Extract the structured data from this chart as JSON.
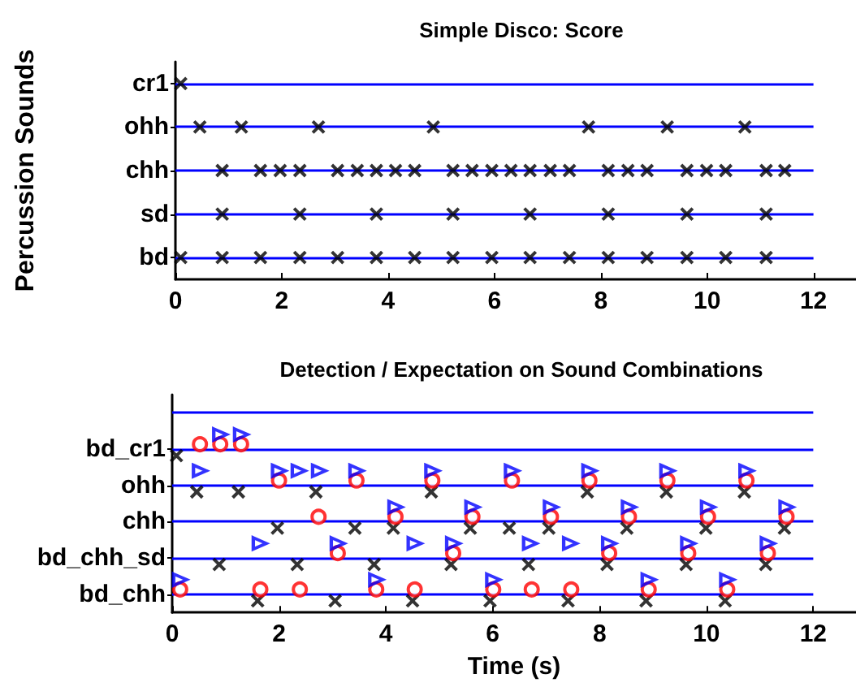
{
  "chart_data": [
    {
      "type": "scatter",
      "orientation": "horizontal",
      "title": "Simple Disco: Score",
      "ylabel": "Percussion Sounds",
      "marker": "cross",
      "grid": "y",
      "xlim": [
        0,
        12.8
      ],
      "xticks": [
        0,
        2,
        4,
        6,
        8,
        10,
        12
      ],
      "categories": [
        "cr1",
        "ohh",
        "chh",
        "sd",
        "bd"
      ],
      "series": [
        {
          "color": "#000000",
          "values": [
            0.1,
            0.46,
            0.88,
            0.88,
            0.1
          ]
        },
        {
          "color": "#000000",
          "values": [
            null,
            1.24,
            1.6,
            2.34,
            0.88
          ]
        },
        {
          "color": "#000000",
          "values": [
            null,
            2.69,
            1.97,
            3.78,
            1.6
          ]
        },
        {
          "color": "#000000",
          "values": [
            null,
            4.85,
            2.34,
            5.22,
            2.34
          ]
        },
        {
          "color": "#000000",
          "values": [
            null,
            7.77,
            3.05,
            6.67,
            3.05
          ]
        },
        {
          "color": "#000000",
          "values": [
            null,
            9.25,
            3.42,
            8.14,
            3.78
          ]
        },
        {
          "color": "#000000",
          "values": [
            null,
            10.71,
            3.78,
            9.62,
            4.5
          ]
        },
        {
          "color": "#000000",
          "values": [
            null,
            null,
            4.14,
            11.11,
            5.22
          ]
        },
        {
          "color": "#000000",
          "values": [
            null,
            null,
            4.5,
            null,
            5.95
          ]
        },
        {
          "color": "#000000",
          "values": [
            null,
            null,
            5.22,
            null,
            6.67
          ]
        },
        {
          "color": "#000000",
          "values": [
            null,
            null,
            5.58,
            null,
            7.41
          ]
        },
        {
          "color": "#000000",
          "values": [
            null,
            null,
            5.95,
            null,
            8.14
          ]
        },
        {
          "color": "#000000",
          "values": [
            null,
            null,
            6.31,
            null,
            8.87
          ]
        },
        {
          "color": "#000000",
          "values": [
            null,
            null,
            6.67,
            null,
            9.62
          ]
        },
        {
          "color": "#000000",
          "values": [
            null,
            null,
            7.05,
            null,
            10.35
          ]
        },
        {
          "color": "#000000",
          "values": [
            null,
            null,
            7.41,
            null,
            11.11
          ]
        },
        {
          "color": "#000000",
          "values": [
            null,
            null,
            8.14,
            null,
            null
          ]
        },
        {
          "color": "#000000",
          "values": [
            null,
            null,
            8.51,
            null,
            null
          ]
        },
        {
          "color": "#000000",
          "values": [
            null,
            null,
            8.87,
            null,
            null
          ]
        },
        {
          "color": "#000000",
          "values": [
            null,
            null,
            9.62,
            null,
            null
          ]
        },
        {
          "color": "#000000",
          "values": [
            null,
            null,
            9.99,
            null,
            null
          ]
        },
        {
          "color": "#000000",
          "values": [
            null,
            null,
            10.35,
            null,
            null
          ]
        },
        {
          "color": "#000000",
          "values": [
            null,
            null,
            11.11,
            null,
            null
          ]
        },
        {
          "color": "#000000",
          "values": [
            null,
            null,
            11.46,
            null,
            null
          ]
        }
      ]
    },
    {
      "type": "scatter",
      "orientation": "horizontal",
      "title": "Detection / Expectation on Sound Combinations",
      "xlabel": "Time (s)",
      "grid": "y",
      "xlim": [
        0,
        12.8
      ],
      "xticks": [
        0,
        2,
        4,
        6,
        8,
        10,
        12
      ],
      "categories": [
        null,
        "bd_cr1",
        "ohh",
        "chh",
        "bd_chh_sd",
        "bd_chh"
      ],
      "series": [
        {
          "color": "#000000",
          "marker": "cross",
          "values": [
            null,
            0.08,
            0.46,
            1.97,
            0.88,
            1.6
          ]
        },
        {
          "color": "#000000",
          "marker": "cross",
          "values": [
            null,
            null,
            1.24,
            3.42,
            2.34,
            3.05
          ]
        },
        {
          "color": "#000000",
          "marker": "cross",
          "values": [
            null,
            null,
            2.69,
            4.14,
            3.78,
            4.5
          ]
        },
        {
          "color": "#000000",
          "marker": "cross",
          "values": [
            null,
            null,
            4.85,
            5.58,
            5.22,
            5.95
          ]
        },
        {
          "color": "#000000",
          "marker": "cross",
          "values": [
            null,
            null,
            7.77,
            6.31,
            6.67,
            7.41
          ]
        },
        {
          "color": "#000000",
          "marker": "cross",
          "values": [
            null,
            null,
            9.25,
            7.05,
            8.14,
            8.87
          ]
        },
        {
          "color": "#000000",
          "marker": "cross",
          "values": [
            null,
            null,
            10.71,
            8.51,
            9.62,
            10.35
          ]
        },
        {
          "color": "#000000",
          "marker": "cross",
          "values": [
            null,
            null,
            null,
            9.99,
            11.11,
            null
          ]
        },
        {
          "color": "#000000",
          "marker": "cross",
          "values": [
            null,
            null,
            null,
            11.46,
            null,
            null
          ]
        },
        {
          "color": "#ff0000",
          "marker": "circle",
          "values": [
            null,
            0.52,
            2.0,
            2.74,
            3.1,
            0.15
          ]
        },
        {
          "color": "#ff0000",
          "marker": "circle",
          "values": [
            null,
            0.9,
            3.45,
            4.18,
            5.26,
            1.65
          ]
        },
        {
          "color": "#ff0000",
          "marker": "circle",
          "values": [
            null,
            1.29,
            4.87,
            5.62,
            8.18,
            2.39
          ]
        },
        {
          "color": "#ff0000",
          "marker": "circle",
          "values": [
            null,
            null,
            6.36,
            7.09,
            9.66,
            3.82
          ]
        },
        {
          "color": "#ff0000",
          "marker": "circle",
          "values": [
            null,
            null,
            7.81,
            8.55,
            11.15,
            4.54
          ]
        },
        {
          "color": "#ff0000",
          "marker": "circle",
          "values": [
            null,
            null,
            9.27,
            10.03,
            null,
            6.01
          ]
        },
        {
          "color": "#ff0000",
          "marker": "circle",
          "values": [
            null,
            null,
            10.75,
            11.5,
            null,
            6.73
          ]
        },
        {
          "color": "#ff0000",
          "marker": "circle",
          "values": [
            null,
            null,
            null,
            null,
            null,
            7.47
          ]
        },
        {
          "color": "#ff0000",
          "marker": "circle",
          "values": [
            null,
            null,
            null,
            null,
            null,
            8.92
          ]
        },
        {
          "color": "#ff0000",
          "marker": "circle",
          "values": [
            null,
            null,
            null,
            null,
            null,
            10.39
          ]
        },
        {
          "color": "#0000ff",
          "marker": "triangle",
          "values": [
            null,
            0.9,
            0.52,
            4.18,
            1.64,
            0.15
          ]
        },
        {
          "color": "#0000ff",
          "marker": "triangle",
          "values": [
            null,
            1.29,
            2.0,
            5.62,
            3.1,
            3.82
          ]
        },
        {
          "color": "#0000ff",
          "marker": "triangle",
          "values": [
            null,
            null,
            2.37,
            7.09,
            4.54,
            6.01
          ]
        },
        {
          "color": "#0000ff",
          "marker": "triangle",
          "values": [
            null,
            null,
            2.75,
            8.55,
            5.26,
            8.92
          ]
        },
        {
          "color": "#0000ff",
          "marker": "triangle",
          "values": [
            null,
            null,
            3.45,
            10.03,
            6.7,
            10.39
          ]
        },
        {
          "color": "#0000ff",
          "marker": "triangle",
          "values": [
            null,
            null,
            4.87,
            11.5,
            7.45,
            null
          ]
        },
        {
          "color": "#0000ff",
          "marker": "triangle",
          "values": [
            null,
            null,
            6.36,
            null,
            8.18,
            null
          ]
        },
        {
          "color": "#0000ff",
          "marker": "triangle",
          "values": [
            null,
            null,
            7.81,
            null,
            9.66,
            null
          ]
        },
        {
          "color": "#0000ff",
          "marker": "triangle",
          "values": [
            null,
            null,
            9.27,
            null,
            11.15,
            null
          ]
        },
        {
          "color": "#0000ff",
          "marker": "triangle",
          "values": [
            null,
            null,
            10.75,
            null,
            null,
            null
          ]
        }
      ]
    }
  ]
}
